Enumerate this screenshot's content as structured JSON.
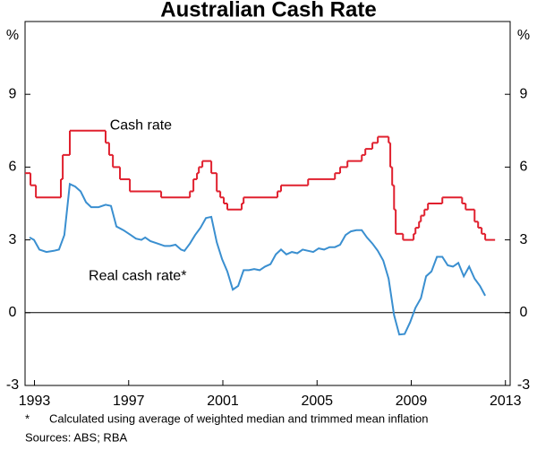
{
  "chart_data": {
    "type": "line",
    "title": "Australian Cash Rate",
    "y_unit": "%",
    "xlim": [
      1992.6,
      2013.2
    ],
    "xticks": [
      1993,
      1997,
      2001,
      2005,
      2009,
      2013
    ],
    "ylim": [
      -3,
      12
    ],
    "yticks": [
      -3,
      0,
      3,
      6,
      9
    ],
    "zero_line": true,
    "grid": false,
    "series": [
      {
        "name": "Cash rate",
        "color": "#e0202e",
        "step": true,
        "x": [
          1992.6,
          1992.83,
          1993.06,
          1994.12,
          1994.2,
          1994.5,
          1996.02,
          1996.17,
          1996.33,
          1996.63,
          1997.05,
          1998.38,
          1999.6,
          1999.75,
          1999.9,
          1999.98,
          2000.13,
          2000.51,
          2000.74,
          2000.89,
          2001.04,
          2001.19,
          2001.8,
          2001.88,
          2003.32,
          2003.47,
          2004.62,
          2005.76,
          2005.98,
          2006.29,
          2006.9,
          2007.05,
          2007.35,
          2007.58,
          2008.04,
          2008.11,
          2008.19,
          2008.27,
          2008.34,
          2008.65,
          2009.1,
          2009.18,
          2009.33,
          2009.41,
          2009.56,
          2009.71,
          2010.32,
          2011.16,
          2011.31,
          2011.69,
          2011.84,
          2011.99,
          2012.14,
          2012.56
        ],
        "values": [
          5.75,
          5.25,
          4.75,
          5.5,
          6.5,
          7.5,
          7.0,
          6.5,
          6.0,
          5.5,
          5.0,
          4.75,
          5.0,
          5.5,
          5.75,
          6.0,
          6.25,
          5.75,
          5.0,
          4.75,
          4.5,
          4.25,
          4.5,
          4.75,
          5.0,
          5.25,
          5.5,
          5.75,
          6.0,
          6.25,
          6.5,
          6.75,
          7.0,
          7.25,
          7.0,
          6.0,
          5.25,
          4.25,
          3.25,
          3.0,
          3.25,
          3.5,
          3.75,
          4.0,
          4.25,
          4.5,
          4.75,
          4.5,
          4.25,
          3.75,
          3.5,
          3.25,
          3.0,
          3.0
        ]
      },
      {
        "name": "Real cash rate*",
        "color": "#3a8fd0",
        "step": false,
        "x": [
          1992.79,
          1992.98,
          1993.21,
          1993.51,
          1993.82,
          1994.04,
          1994.27,
          1994.5,
          1994.73,
          1994.96,
          1995.19,
          1995.41,
          1995.72,
          1996.02,
          1996.25,
          1996.48,
          1996.78,
          1997.09,
          1997.31,
          1997.54,
          1997.7,
          1997.92,
          1998.23,
          1998.53,
          1998.76,
          1998.99,
          1999.22,
          1999.37,
          1999.6,
          1999.82,
          2000.05,
          2000.28,
          2000.51,
          2000.74,
          2000.97,
          2001.19,
          2001.42,
          2001.65,
          2001.88,
          2002.11,
          2002.33,
          2002.56,
          2002.79,
          2003.02,
          2003.25,
          2003.47,
          2003.7,
          2003.93,
          2004.16,
          2004.39,
          2004.62,
          2004.84,
          2005.07,
          2005.3,
          2005.53,
          2005.76,
          2005.98,
          2006.21,
          2006.44,
          2006.67,
          2006.9,
          2007.12,
          2007.35,
          2007.58,
          2007.81,
          2008.04,
          2008.27,
          2008.49,
          2008.72,
          2008.95,
          2009.18,
          2009.41,
          2009.63,
          2009.86,
          2010.09,
          2010.32,
          2010.55,
          2010.77,
          2011.0,
          2011.23,
          2011.46,
          2011.69,
          2011.92,
          2012.14
        ],
        "values": [
          3.1,
          3.0,
          2.6,
          2.5,
          2.55,
          2.6,
          3.2,
          5.3,
          5.2,
          5.0,
          4.55,
          4.35,
          4.35,
          4.45,
          4.4,
          3.55,
          3.4,
          3.2,
          3.05,
          3.0,
          3.1,
          2.95,
          2.85,
          2.75,
          2.75,
          2.8,
          2.6,
          2.55,
          2.85,
          3.2,
          3.5,
          3.9,
          3.95,
          2.9,
          2.2,
          1.7,
          0.95,
          1.1,
          1.75,
          1.75,
          1.8,
          1.75,
          1.9,
          2.0,
          2.4,
          2.6,
          2.4,
          2.5,
          2.45,
          2.6,
          2.55,
          2.5,
          2.65,
          2.6,
          2.7,
          2.7,
          2.8,
          3.2,
          3.35,
          3.4,
          3.4,
          3.1,
          2.85,
          2.55,
          2.15,
          1.4,
          -0.1,
          -0.9,
          -0.88,
          -0.4,
          0.2,
          0.6,
          1.5,
          1.7,
          2.3,
          2.3,
          1.95,
          1.9,
          2.05,
          1.5,
          1.9,
          1.4,
          1.1,
          0.7
        ]
      }
    ],
    "annotations": [
      {
        "text": "Cash rate",
        "x": 1996.2,
        "y": 7.7,
        "series": 0
      },
      {
        "text": "Real cash rate*",
        "x": 1995.3,
        "y": 1.5,
        "series": 1
      }
    ],
    "footnote": {
      "marker": "*",
      "text": "Calculated using average of weighted median and trimmed mean inflation"
    },
    "sources": "Sources: ABS; RBA"
  }
}
